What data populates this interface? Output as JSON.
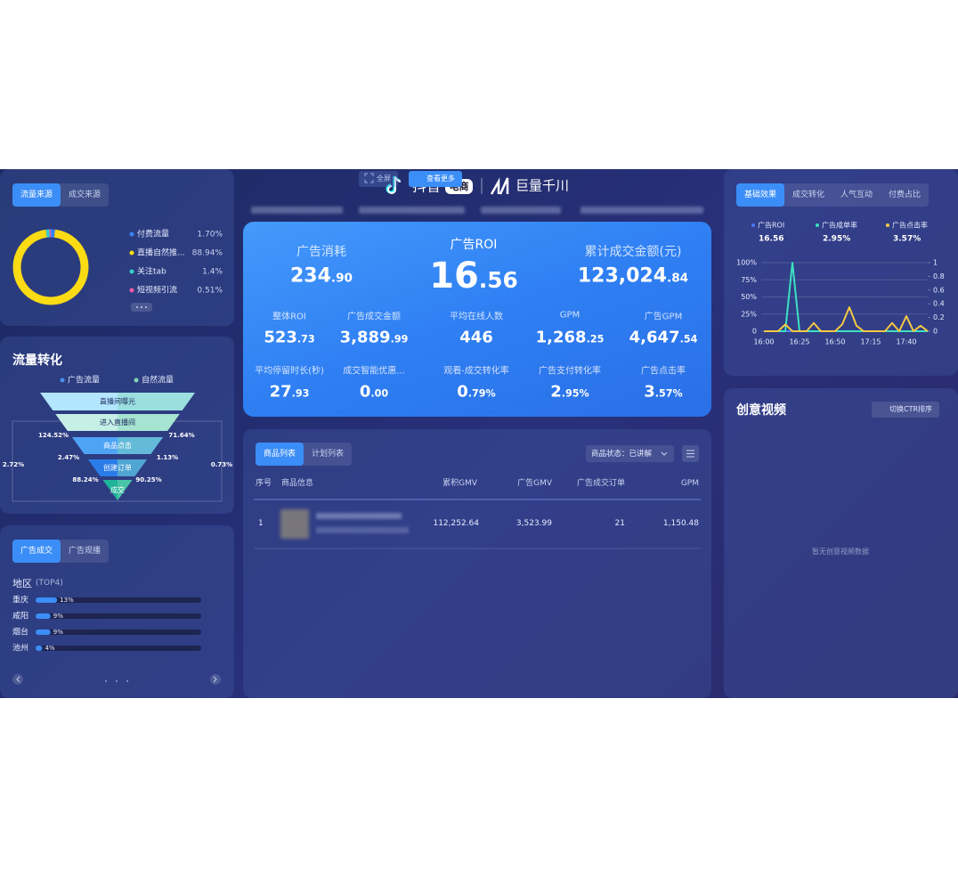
{
  "header": {
    "logo_douyin": "抖音",
    "logo_badge": "电商",
    "logo_qianchuan": "巨量千川",
    "buttons": [
      "全屏",
      "查看更多"
    ]
  },
  "traffic_source": {
    "tabs": [
      "流量来源",
      "成交来源"
    ]
  },
  "ad_region": {
    "tabs": [
      "广告成交",
      "广告观播"
    ]
  },
  "kpi": {
    "main": [
      {
        "label": "广告消耗",
        "value": "234.90"
      },
      {
        "label": "广告ROI",
        "value": "16.56"
      },
      {
        "label": "累计成交金额(元)",
        "value": "123,024.84"
      }
    ],
    "grid": [
      {
        "label": "整体ROI",
        "value": "523.73"
      },
      {
        "label": "广告成交金额",
        "value": "3,889.99"
      },
      {
        "label": "平均在线人数",
        "value": "446"
      },
      {
        "label": "GPM",
        "value": "1,268.25"
      },
      {
        "label": "广告GPM",
        "value": "4,647.54"
      },
      {
        "label": "平均停留时长(秒)",
        "value": "27.93"
      },
      {
        "label": "成交智能优惠...",
        "value": "0.00"
      },
      {
        "label": "观看-成交转化率",
        "value": "0.79%"
      },
      {
        "label": "广告支付转化率",
        "value": "2.95%"
      },
      {
        "label": "广告点击率",
        "value": "3.57%"
      }
    ]
  },
  "product_table": {
    "tabs": [
      "商品列表",
      "计划列表"
    ],
    "filter": "商品状态：已讲解",
    "columns": [
      "序号",
      "商品信息",
      "累积GMV",
      "广告GMV",
      "广告成交订单",
      "GPM"
    ],
    "rows": [
      {
        "index": "1",
        "gmv": "112,252.64",
        "ad_gmv": "3,523.99",
        "ad_orders": "21",
        "gpm": "1,150.48"
      }
    ]
  },
  "effect": {
    "tabs": [
      "基础效果",
      "成交转化",
      "人气互动",
      "付费占比"
    ]
  },
  "creative": {
    "title": "创意视频",
    "button": "切换CTR排序",
    "empty": "暂无创意视频数据"
  },
  "chart_data": [
    {
      "type": "pie",
      "categories": [
        "付费流量",
        "直播自然推...",
        "关注tab",
        "短视频引流"
      ],
      "values": [
        1.7,
        88.94,
        1.4,
        0.51
      ],
      "value_labels": [
        "1.70%",
        "88.94%",
        "1.4%",
        "0.51%"
      ],
      "colors": [
        "#3b82f6",
        "#fadb14",
        "#36cfc9",
        "#f759ab"
      ]
    },
    {
      "type": "funnel",
      "title": "流量转化",
      "stages": [
        "直播间曝光",
        "进入直播间",
        "商品点击",
        "创建订单",
        "成交"
      ],
      "colors": [
        "#b3e5ff",
        "#c6efe6",
        "#4ea3f5",
        "#2a7de8",
        "#20b49a"
      ],
      "series": [
        {
          "name": "广告流量",
          "color": "#4a90f0"
        },
        {
          "name": "自然流量",
          "color": "#7fd6b8"
        }
      ],
      "rates": [
        "124.52%",
        "71.64%",
        "2.47%",
        "1.13%",
        "88.24%",
        "90.25%",
        "2.72%",
        "0.73%"
      ]
    },
    {
      "type": "line",
      "categories": [
        "16:00",
        null,
        null,
        null,
        null,
        "16:25",
        null,
        null,
        null,
        null,
        "16:50",
        null,
        null,
        null,
        null,
        "17:15",
        null,
        null,
        null,
        null,
        "17:40",
        null,
        null,
        null
      ],
      "series": [
        {
          "name": "广告ROI",
          "summary": "16.56",
          "color": "#4a7bf7",
          "axis": "y2",
          "values": [
            0,
            0,
            0,
            0,
            0,
            0,
            0,
            0,
            0,
            0,
            0,
            0,
            0,
            0,
            0,
            0,
            0,
            0,
            0,
            0,
            0,
            0,
            0,
            0
          ]
        },
        {
          "name": "广告成单率",
          "summary": "2.95%",
          "color": "#3de0c0",
          "values": [
            0,
            0,
            0,
            0,
            100,
            0,
            0,
            0,
            0,
            0,
            0,
            0,
            0,
            0,
            0,
            0,
            0,
            0,
            0,
            0,
            0,
            0,
            0,
            0
          ]
        },
        {
          "name": "广告点击率",
          "summary": "3.57%",
          "color": "#f5c842",
          "values": [
            0,
            0,
            0,
            10,
            0,
            0,
            0,
            12,
            0,
            0,
            0,
            10,
            35,
            8,
            0,
            0,
            0,
            0,
            12,
            0,
            22,
            0,
            8,
            0
          ]
        }
      ],
      "ylim": [
        0,
        100
      ],
      "yticks": [
        0,
        {
          "value": 25,
          "label": "25%"
        },
        {
          "value": 50,
          "label": "50%"
        },
        {
          "value": 75,
          "label": "75%"
        },
        {
          "value": 100,
          "label": "100%"
        }
      ],
      "y2lim": [
        0,
        1
      ],
      "y2ticks": [
        0,
        0.2,
        0.4,
        0.6,
        0.8,
        1
      ],
      "grid": true
    },
    {
      "type": "bar",
      "orientation": "horizontal",
      "title": "地区",
      "subtitle": "(TOP4)",
      "categories": [
        "重庆",
        "咸阳",
        "烟台",
        "池州"
      ],
      "values": [
        13,
        9,
        9,
        4
      ],
      "value_labels": [
        "13%",
        "9%",
        "9%",
        "4%"
      ],
      "xlim": [
        0,
        100
      ],
      "color": "#3b8ef7"
    }
  ]
}
